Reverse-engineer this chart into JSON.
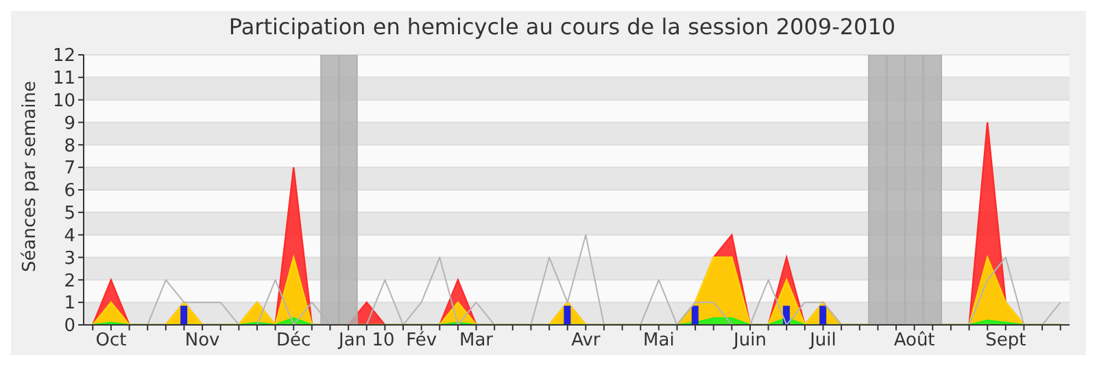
{
  "chart_data": {
    "type": "area",
    "title": "Participation en hemicycle au cours de la session 2009-2010",
    "ylabel": "Séances par semaine",
    "categories": [
      null,
      "Oct",
      null,
      null,
      null,
      null,
      "Nov",
      null,
      null,
      null,
      null,
      "Déc",
      null,
      null,
      null,
      "Jan 10",
      null,
      null,
      "Fév",
      null,
      null,
      "Mar",
      null,
      null,
      null,
      null,
      null,
      "Avr",
      null,
      null,
      null,
      "Mai",
      null,
      null,
      null,
      null,
      "Juin",
      null,
      null,
      null,
      "Juil",
      null,
      null,
      null,
      null,
      "Août",
      null,
      null,
      null,
      null,
      "Sept",
      null,
      null,
      null
    ],
    "series": [
      {
        "type": "bar",
        "color": "#b0b0b0",
        "values": [
          null,
          null,
          null,
          null,
          null,
          null,
          null,
          null,
          null,
          null,
          null,
          null,
          null,
          12,
          12,
          null,
          null,
          null,
          null,
          null,
          null,
          null,
          null,
          null,
          null,
          null,
          null,
          null,
          null,
          null,
          null,
          null,
          null,
          null,
          null,
          null,
          null,
          null,
          null,
          null,
          null,
          null,
          null,
          12,
          12,
          12,
          12,
          null,
          null,
          null,
          null,
          null,
          null,
          null
        ]
      },
      {
        "type": "line",
        "color": "#b4b4b4",
        "values": [
          0,
          0,
          0,
          0,
          2,
          1,
          1,
          1,
          0,
          0,
          2,
          0,
          1,
          0,
          0,
          0,
          2,
          0,
          1,
          3,
          0,
          1,
          0,
          0,
          0,
          3,
          1,
          4,
          0,
          0,
          0,
          2,
          0,
          1,
          1,
          0,
          0,
          2,
          0,
          1,
          1,
          0,
          0,
          0,
          0,
          0,
          0,
          0,
          0,
          2,
          3,
          0,
          0,
          1
        ]
      },
      {
        "color": "#ff2a2a",
        "values": [
          0,
          2,
          0,
          0,
          0,
          1,
          0,
          0,
          0,
          1,
          0,
          7,
          0,
          0,
          0,
          1,
          0,
          0,
          0,
          0,
          2,
          0,
          0,
          0,
          0,
          0,
          1,
          0,
          0,
          0,
          0,
          0,
          0,
          1,
          3,
          4,
          0,
          0,
          3,
          0,
          1,
          0,
          0,
          0,
          0,
          0,
          0,
          0,
          0,
          9,
          1,
          0,
          0,
          0
        ]
      },
      {
        "color": "#ffd700",
        "values": [
          0,
          1,
          0,
          0,
          0,
          1,
          0,
          0,
          0,
          1,
          0,
          3,
          0,
          0,
          0,
          0,
          0,
          0,
          0,
          0,
          1,
          0,
          0,
          0,
          0,
          0,
          1,
          0,
          0,
          0,
          0,
          0,
          0,
          1,
          3,
          3,
          0,
          0,
          2,
          0,
          1,
          0,
          0,
          0,
          0,
          0,
          0,
          0,
          0,
          3,
          1,
          0,
          0,
          0
        ]
      },
      {
        "color": "#22ee22",
        "values": [
          0,
          0.1,
          0,
          0,
          0,
          0,
          0,
          0,
          0,
          0.1,
          0,
          0.3,
          0,
          0,
          0,
          0,
          0,
          0,
          0,
          0,
          0.1,
          0,
          0,
          0,
          0,
          0,
          0,
          0,
          0,
          0,
          0,
          0,
          0,
          0.1,
          0.3,
          0.3,
          0,
          0,
          0.3,
          0,
          0,
          0,
          0,
          0,
          0,
          0,
          0,
          0,
          0,
          0.2,
          0.1,
          0,
          0,
          0
        ]
      },
      {
        "type": "bar",
        "color": "#2222dd",
        "values": [
          null,
          null,
          null,
          null,
          null,
          0.85,
          null,
          null,
          null,
          null,
          null,
          null,
          null,
          null,
          null,
          null,
          null,
          null,
          null,
          null,
          null,
          null,
          null,
          null,
          null,
          null,
          0.85,
          null,
          null,
          null,
          null,
          null,
          null,
          0.85,
          null,
          null,
          null,
          null,
          0.85,
          null,
          0.85,
          null,
          null,
          null,
          null,
          null,
          null,
          null,
          null,
          null,
          null,
          null,
          null,
          null
        ]
      }
    ],
    "ylim": [
      0,
      12
    ],
    "yticks": [
      0,
      1,
      2,
      3,
      4,
      5,
      6,
      7,
      8,
      9,
      10,
      11,
      12
    ],
    "grid": "y"
  }
}
